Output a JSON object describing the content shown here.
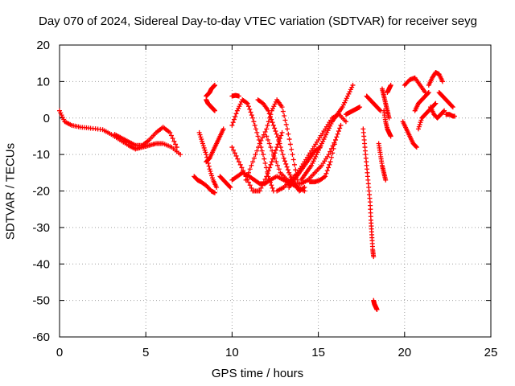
{
  "chart_data": {
    "type": "scatter",
    "title": "Day 070 of 2024, Sidereal Day-to-day VTEC variation (SDTVAR) for receiver seyg",
    "xlabel": "GPS time / hours",
    "ylabel": "SDTVAR / TECUs",
    "xlim": [
      0,
      25
    ],
    "ylim": [
      -60,
      20
    ],
    "xticks": [
      0,
      5,
      10,
      15,
      20,
      25
    ],
    "yticks": [
      -60,
      -50,
      -40,
      -30,
      -20,
      -10,
      0,
      10,
      20
    ],
    "grid": true,
    "marker": "+",
    "color": "#ff0000",
    "segments": [
      {
        "x": [
          0.0,
          0.3,
          0.7,
          1.2,
          1.8,
          2.5,
          3.0,
          3.5,
          4.0,
          4.4,
          4.8,
          5.2,
          5.6,
          6.0,
          6.5,
          7.0
        ],
        "y": [
          2,
          -1,
          -2,
          -2.5,
          -2.8,
          -3.2,
          -4.5,
          -6,
          -7.5,
          -8.5,
          -8,
          -7.5,
          -7,
          -7,
          -8,
          -10
        ]
      },
      {
        "x": [
          3.2,
          3.6,
          4.0,
          4.4,
          4.8,
          5.2,
          5.6,
          6.0,
          6.4,
          6.8
        ],
        "y": [
          -4.5,
          -5.5,
          -6.5,
          -7.5,
          -7.5,
          -6,
          -4,
          -2.5,
          -4,
          -8
        ]
      },
      {
        "x": [
          7.8,
          8.0,
          8.2,
          8.5,
          8.8,
          9.0
        ],
        "y": [
          -16,
          -17,
          -17.5,
          -18.5,
          -20,
          -20.5
        ]
      },
      {
        "x": [
          8.1,
          8.3,
          8.5,
          8.7,
          8.9,
          9.1
        ],
        "y": [
          -4,
          -7,
          -10,
          -14,
          -17,
          -19
        ]
      },
      {
        "x": [
          8.5,
          8.7,
          8.9,
          9.1,
          9.3,
          9.5
        ],
        "y": [
          -12,
          -11,
          -9,
          -7,
          -5,
          -3
        ]
      },
      {
        "x": [
          8.5,
          8.6,
          8.7,
          8.8,
          8.9,
          9.0
        ],
        "y": [
          6,
          6.5,
          7,
          8,
          8.5,
          9
        ]
      },
      {
        "x": [
          8.5,
          8.6,
          8.7,
          8.8,
          8.9,
          9.0
        ],
        "y": [
          5,
          4,
          3.5,
          3,
          2.5,
          2
        ]
      },
      {
        "x": [
          9.3,
          9.5,
          9.7,
          9.9
        ],
        "y": [
          -16,
          -17,
          -18,
          -19
        ]
      },
      {
        "x": [
          10.0,
          10.2,
          10.4
        ],
        "y": [
          6,
          6.2,
          6
        ]
      },
      {
        "x": [
          10.0,
          10.3,
          10.6,
          11.0,
          11.3,
          11.6,
          11.9,
          12.2,
          12.6,
          13.0,
          13.4,
          13.8,
          14.2
        ],
        "y": [
          -17,
          -16,
          -15,
          -16,
          -17,
          -18,
          -18,
          -17,
          -16,
          -17,
          -18,
          -19,
          -20
        ]
      },
      {
        "x": [
          10.0,
          10.3,
          10.6,
          10.9,
          11.2,
          11.5,
          11.8,
          12.1,
          12.4
        ],
        "y": [
          -2,
          2,
          5,
          4,
          0,
          -5,
          -10,
          -16,
          -20
        ]
      },
      {
        "x": [
          10.0,
          10.4,
          10.8,
          11.2,
          11.6,
          12.0,
          12.3,
          12.6,
          12.9
        ],
        "y": [
          -8,
          -12,
          -16,
          -20,
          -20,
          -16,
          -12,
          -8,
          -4
        ]
      },
      {
        "x": [
          10.8,
          11.2,
          11.6,
          12.0,
          12.3,
          12.6,
          12.9,
          13.2,
          13.5,
          13.8
        ],
        "y": [
          -17,
          -12,
          -7,
          -3,
          2,
          5,
          3,
          -3,
          -10,
          -17
        ]
      },
      {
        "x": [
          11.5,
          11.8,
          12.1,
          12.4,
          12.7,
          13.0,
          13.3,
          13.6,
          13.9,
          14.2
        ],
        "y": [
          5,
          4,
          2,
          -2,
          -6,
          -11,
          -15,
          -18,
          -20,
          -19
        ]
      },
      {
        "x": [
          12.0,
          12.4,
          12.8,
          13.2,
          13.6,
          14.0,
          14.4,
          14.8,
          15.2,
          15.6,
          16.0
        ],
        "y": [
          -5,
          -10,
          -15,
          -17,
          -18,
          -18,
          -17,
          -15,
          -13,
          -10,
          -6
        ]
      },
      {
        "x": [
          12.6,
          13.0,
          13.4,
          13.8,
          14.2,
          14.6,
          15.0,
          15.4,
          15.8,
          16.2,
          16.6
        ],
        "y": [
          -20,
          -19,
          -17,
          -15,
          -12,
          -9,
          -6,
          -3,
          0,
          1,
          -1
        ]
      },
      {
        "x": [
          13.3,
          13.6,
          13.9,
          14.2,
          14.5,
          14.8,
          15.1
        ],
        "y": [
          -19,
          -17,
          -15,
          -13,
          -11,
          -9,
          -8
        ]
      },
      {
        "x": [
          14.0,
          14.3,
          14.6,
          14.9,
          15.2,
          15.5,
          15.8,
          16.1,
          16.4,
          16.7,
          17.0
        ],
        "y": [
          -17,
          -15,
          -13,
          -10,
          -7,
          -4,
          -1,
          1,
          3,
          6,
          9
        ]
      },
      {
        "x": [
          14.5,
          14.8,
          15.1,
          15.4,
          15.7,
          16.0,
          16.3
        ],
        "y": [
          -17.5,
          -17.5,
          -17,
          -16,
          -12,
          -6,
          -2
        ]
      },
      {
        "x": [
          16.6,
          16.8,
          17.0,
          17.2,
          17.4
        ],
        "y": [
          1,
          1.5,
          2,
          2.5,
          3
        ]
      },
      {
        "x": [
          17.6,
          17.7,
          17.8,
          17.9,
          18.0,
          18.05,
          18.1,
          18.15,
          18.2
        ],
        "y": [
          -3,
          -8,
          -13,
          -18,
          -23,
          -28,
          -32,
          -36,
          -38
        ]
      },
      {
        "x": [
          18.2,
          18.25,
          18.3,
          18.35,
          18.4
        ],
        "y": [
          -50,
          -51,
          -51.5,
          -52,
          -52.5
        ]
      },
      {
        "x": [
          17.8,
          18.0,
          18.2,
          18.4,
          18.6
        ],
        "y": [
          6,
          5,
          4,
          3,
          2
        ]
      },
      {
        "x": [
          18.5,
          18.6,
          18.7,
          18.8,
          18.9
        ],
        "y": [
          -7,
          -10,
          -13,
          -15,
          -17
        ]
      },
      {
        "x": [
          18.7,
          18.8,
          18.9,
          19.0,
          19.1
        ],
        "y": [
          8,
          6,
          4,
          2,
          0
        ]
      },
      {
        "x": [
          18.8,
          18.9,
          19.0,
          19.1,
          19.2
        ],
        "y": [
          2,
          -1,
          -3,
          -4,
          -5
        ]
      },
      {
        "x": [
          19.0,
          19.1,
          19.2
        ],
        "y": [
          7,
          8,
          9
        ]
      },
      {
        "x": [
          19.9,
          20.1,
          20.3,
          20.5,
          20.7
        ],
        "y": [
          -1,
          -3,
          -5,
          -7,
          -8
        ]
      },
      {
        "x": [
          20.0,
          20.3,
          20.6,
          20.9,
          21.2
        ],
        "y": [
          9,
          10.5,
          11,
          9,
          7
        ]
      },
      {
        "x": [
          20.6,
          20.8,
          21.0,
          21.2,
          21.4
        ],
        "y": [
          2,
          4,
          5,
          6,
          7
        ]
      },
      {
        "x": [
          20.8,
          21.0,
          21.2,
          21.4,
          21.6,
          21.8
        ],
        "y": [
          -3,
          0,
          1,
          2,
          3,
          4
        ]
      },
      {
        "x": [
          21.4,
          21.6,
          21.8,
          22.0,
          22.2
        ],
        "y": [
          9,
          11,
          12.5,
          12,
          10
        ]
      },
      {
        "x": [
          21.5,
          21.7,
          21.9,
          22.1,
          22.3
        ],
        "y": [
          3,
          1,
          0,
          1,
          2
        ]
      },
      {
        "x": [
          22.0,
          22.2,
          22.4,
          22.6,
          22.8
        ],
        "y": [
          7,
          6,
          5,
          4,
          3
        ]
      },
      {
        "x": [
          22.4,
          22.6,
          22.8,
          22.9
        ],
        "y": [
          1,
          1,
          0.5,
          0.5
        ]
      }
    ]
  }
}
